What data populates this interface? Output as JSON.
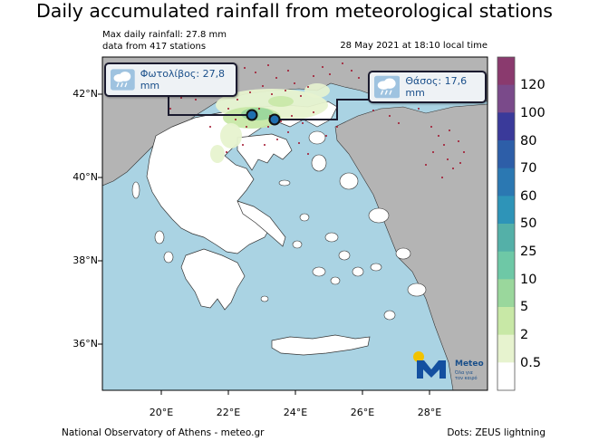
{
  "title": "Daily accumulated rainfall from meteorological stations",
  "info": {
    "max_line": "Max daily rainfall: 27.8 mm",
    "stations_line": "data from 417 stations",
    "date_line": "28 May 2021 at 18:10 local time"
  },
  "axes": {
    "lat_labels": [
      "42°N",
      "40°N",
      "38°N",
      "36°N"
    ],
    "lon_labels": [
      "20°E",
      "22°E",
      "24°E",
      "26°E",
      "28°E"
    ]
  },
  "colorbar": {
    "labels": [
      "120",
      "100",
      "80",
      "70",
      "60",
      "50",
      "25",
      "10",
      "5",
      "2",
      "0.5"
    ],
    "colors": [
      "#8a3a6e",
      "#7a4a8a",
      "#3a3a9a",
      "#2d5ea8",
      "#2b78b2",
      "#2e94b8",
      "#54b0a8",
      "#6ec8a6",
      "#9ad79c",
      "#c8e8a6",
      "#e7f3cf",
      "#ffffff"
    ]
  },
  "stations": [
    {
      "label": "Φωτολίβος: 27,8 mm"
    },
    {
      "label": "Θάσος: 17,6 mm"
    }
  ],
  "logo": {
    "name": "Meteo",
    "tagline_1": "Όλα για",
    "tagline_2": "τον καιρό"
  },
  "footer": {
    "left": "National Observatory of Athens - meteo.gr",
    "right": "Dots: ZEUS lightning"
  },
  "colors": {
    "sea": "#aad3e3",
    "land_greece": "#ffffff",
    "land_other": "#b4b4b4",
    "lightning": "#a0102a"
  }
}
